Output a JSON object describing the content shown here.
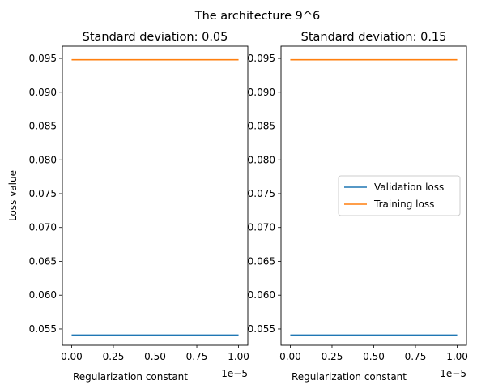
{
  "suptitle": "The architecture  9^6",
  "colors": {
    "validation": "#1f77b4",
    "training": "#ff7f0e"
  },
  "chart_data": [
    {
      "type": "line",
      "title": "Standard deviation: 0.05",
      "xlabel": "Regularization constant",
      "ylabel": "Loss value",
      "x_offset_label": "1e−5",
      "xlim": [
        0,
        1
      ],
      "ylim": [
        0.0526,
        0.0968
      ],
      "xticks": [
        0.0,
        0.25,
        0.5,
        0.75,
        1.0
      ],
      "xtick_labels": [
        "0.00",
        "0.25",
        "0.50",
        "0.75",
        "1.00"
      ],
      "yticks": [
        0.055,
        0.06,
        0.065,
        0.07,
        0.075,
        0.08,
        0.085,
        0.09,
        0.095
      ],
      "ytick_labels": [
        "0.055",
        "0.060",
        "0.065",
        "0.070",
        "0.075",
        "0.080",
        "0.085",
        "0.090",
        "0.095"
      ],
      "x": [
        0,
        1
      ],
      "series": [
        {
          "name": "Validation loss",
          "color_key": "validation",
          "values": [
            0.0541,
            0.0541
          ]
        },
        {
          "name": "Training loss",
          "color_key": "training",
          "values": [
            0.0948,
            0.0948
          ]
        }
      ],
      "legend": false
    },
    {
      "type": "line",
      "title": "Standard deviation: 0.15",
      "xlabel": "Regularization constant",
      "ylabel": "",
      "x_offset_label": "1e−5",
      "xlim": [
        0,
        1
      ],
      "ylim": [
        0.0526,
        0.0968
      ],
      "xticks": [
        0.0,
        0.25,
        0.5,
        0.75,
        1.0
      ],
      "xtick_labels": [
        "0.00",
        "0.25",
        "0.50",
        "0.75",
        "1.00"
      ],
      "yticks": [
        0.055,
        0.06,
        0.065,
        0.07,
        0.075,
        0.08,
        0.085,
        0.09,
        0.095
      ],
      "ytick_labels": [
        "0.055",
        "0.060",
        "0.065",
        "0.070",
        "0.075",
        "0.080",
        "0.085",
        "0.090",
        "0.095"
      ],
      "x": [
        0,
        1
      ],
      "series": [
        {
          "name": "Validation loss",
          "color_key": "validation",
          "values": [
            0.0541,
            0.0541
          ]
        },
        {
          "name": "Training loss",
          "color_key": "training",
          "values": [
            0.0948,
            0.0948
          ]
        }
      ],
      "legend": true,
      "legend_position": "center-right"
    }
  ]
}
